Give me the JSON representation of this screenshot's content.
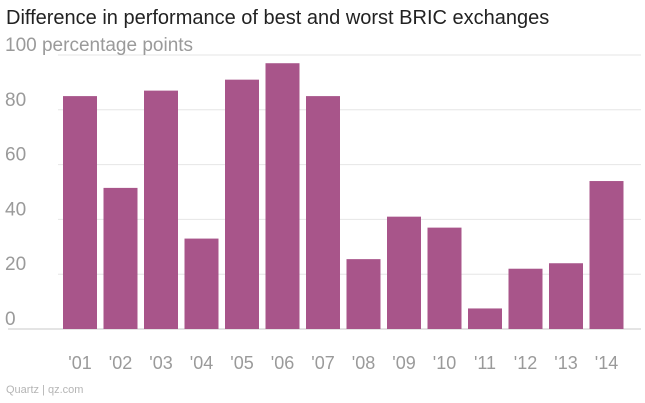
{
  "title": "Difference in performance of best and worst BRIC exchanges",
  "source": "Quartz | qz.com",
  "colors": {
    "bar": "#a8558a",
    "grid": "#e6e6e6",
    "axis": "#c8c8c8",
    "tick": "#9a9a9a"
  },
  "chart_data": {
    "type": "bar",
    "ylabel": "percentage points",
    "ylim": [
      0,
      100
    ],
    "yticks": [
      0,
      20,
      40,
      60,
      80,
      100
    ],
    "top_tick_label": "100 percentage points",
    "categories": [
      "'01",
      "'02",
      "'03",
      "'04",
      "'05",
      "'06",
      "'07",
      "'08",
      "'09",
      "'10",
      "'11",
      "'12",
      "'13",
      "'14"
    ],
    "values": [
      85,
      51.5,
      87,
      33,
      91,
      97,
      85,
      25.5,
      41,
      37,
      7.5,
      22,
      24,
      54
    ],
    "grid": true
  }
}
